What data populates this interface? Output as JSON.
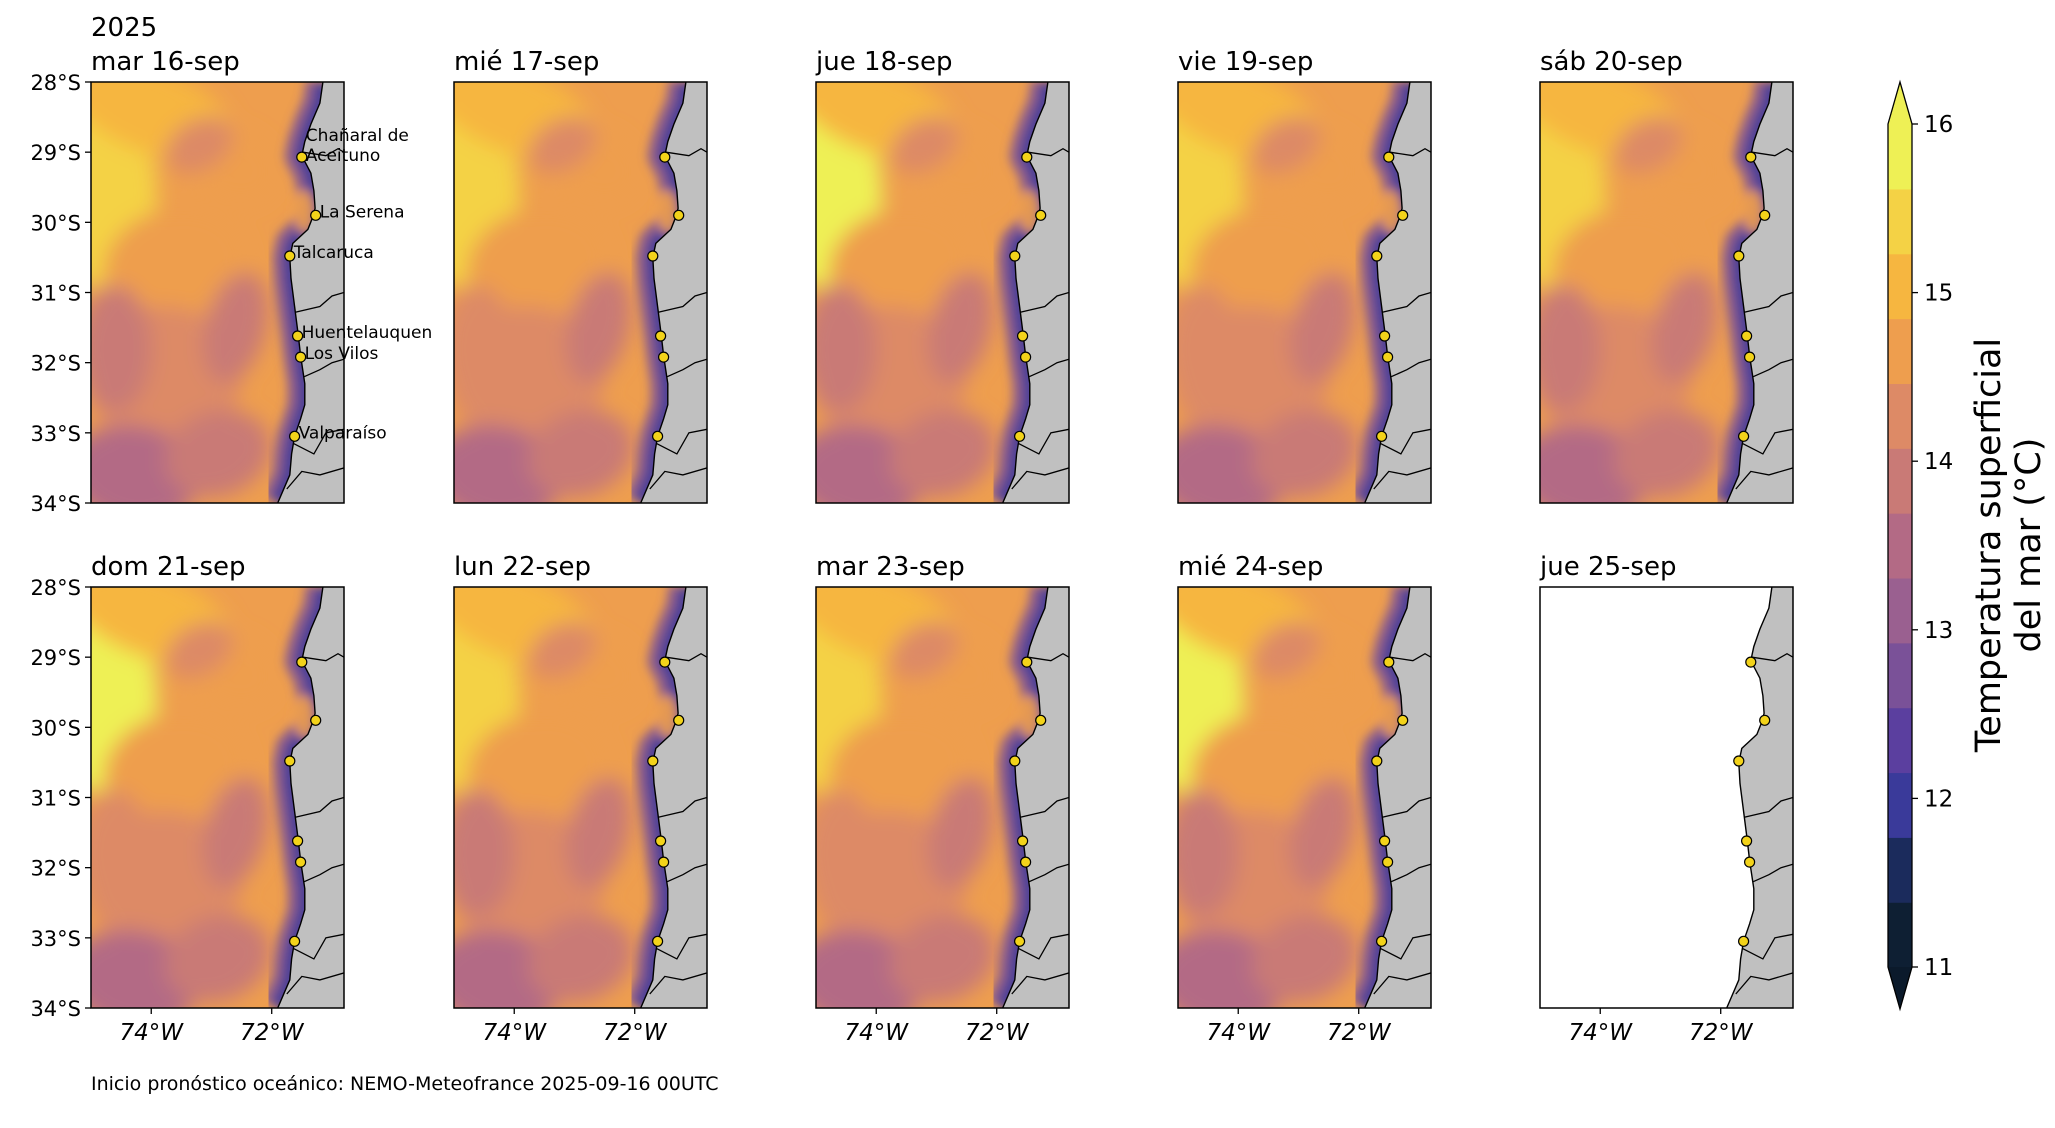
{
  "year_label": "2025",
  "panels": [
    {
      "title": "mar 16-sep",
      "has_data": true
    },
    {
      "title": "mié 17-sep",
      "has_data": true
    },
    {
      "title": "jue 18-sep",
      "has_data": true
    },
    {
      "title": "vie 19-sep",
      "has_data": true
    },
    {
      "title": "sáb 20-sep",
      "has_data": true
    },
    {
      "title": "dom 21-sep",
      "has_data": true
    },
    {
      "title": "lun 22-sep",
      "has_data": true
    },
    {
      "title": "mar 23-sep",
      "has_data": true
    },
    {
      "title": "mié 24-sep",
      "has_data": true
    },
    {
      "title": "jue 25-sep",
      "has_data": false
    }
  ],
  "lat_ticks": [
    "28°S",
    "29°S",
    "30°S",
    "31°S",
    "32°S",
    "33°S",
    "34°S"
  ],
  "lon_ticks": [
    "74°W",
    "72°W"
  ],
  "lat_range": [
    -34,
    -28
  ],
  "lon_range": [
    -75,
    -70.8
  ],
  "stations": [
    {
      "name": "Chañaral de Aceituno",
      "label_lines": [
        "Chañaral de",
        "Aceituno"
      ],
      "lat": -29.07,
      "lon": -71.5
    },
    {
      "name": "La Serena",
      "label_lines": [
        "La Serena"
      ],
      "lat": -29.9,
      "lon": -71.27
    },
    {
      "name": "Talcaruca",
      "label_lines": [
        "Talcaruca"
      ],
      "lat": -30.48,
      "lon": -71.7
    },
    {
      "name": "Huentelauquen",
      "label_lines": [
        "Huentelauquen"
      ],
      "lat": -31.62,
      "lon": -71.57
    },
    {
      "name": "Los Vilos",
      "label_lines": [
        "Los Vilos"
      ],
      "lat": -31.92,
      "lon": -71.52
    },
    {
      "name": "Valparaíso",
      "label_lines": [
        "Valparaíso"
      ],
      "lat": -33.05,
      "lon": -71.62
    }
  ],
  "colorbar": {
    "label_lines": [
      "Temperatura superficial",
      "del mar (°C)"
    ],
    "ticks": [
      "11",
      "12",
      "13",
      "14",
      "15",
      "16"
    ],
    "min": 11,
    "max": 16,
    "colors": [
      "#0e1f33",
      "#1b2b5c",
      "#3a3a9a",
      "#5b3f9f",
      "#7a5198",
      "#9a6090",
      "#b36a85",
      "#c97a76",
      "#dd8a66",
      "#ee9e4e",
      "#f6b640",
      "#f4d245",
      "#eef055"
    ]
  },
  "land_color": "#c0c0c0",
  "station_color": "#f3d31a",
  "footer": "Inicio pronóstico oceánico: NEMO-Meteofrance 2025-09-16 00UTC"
}
